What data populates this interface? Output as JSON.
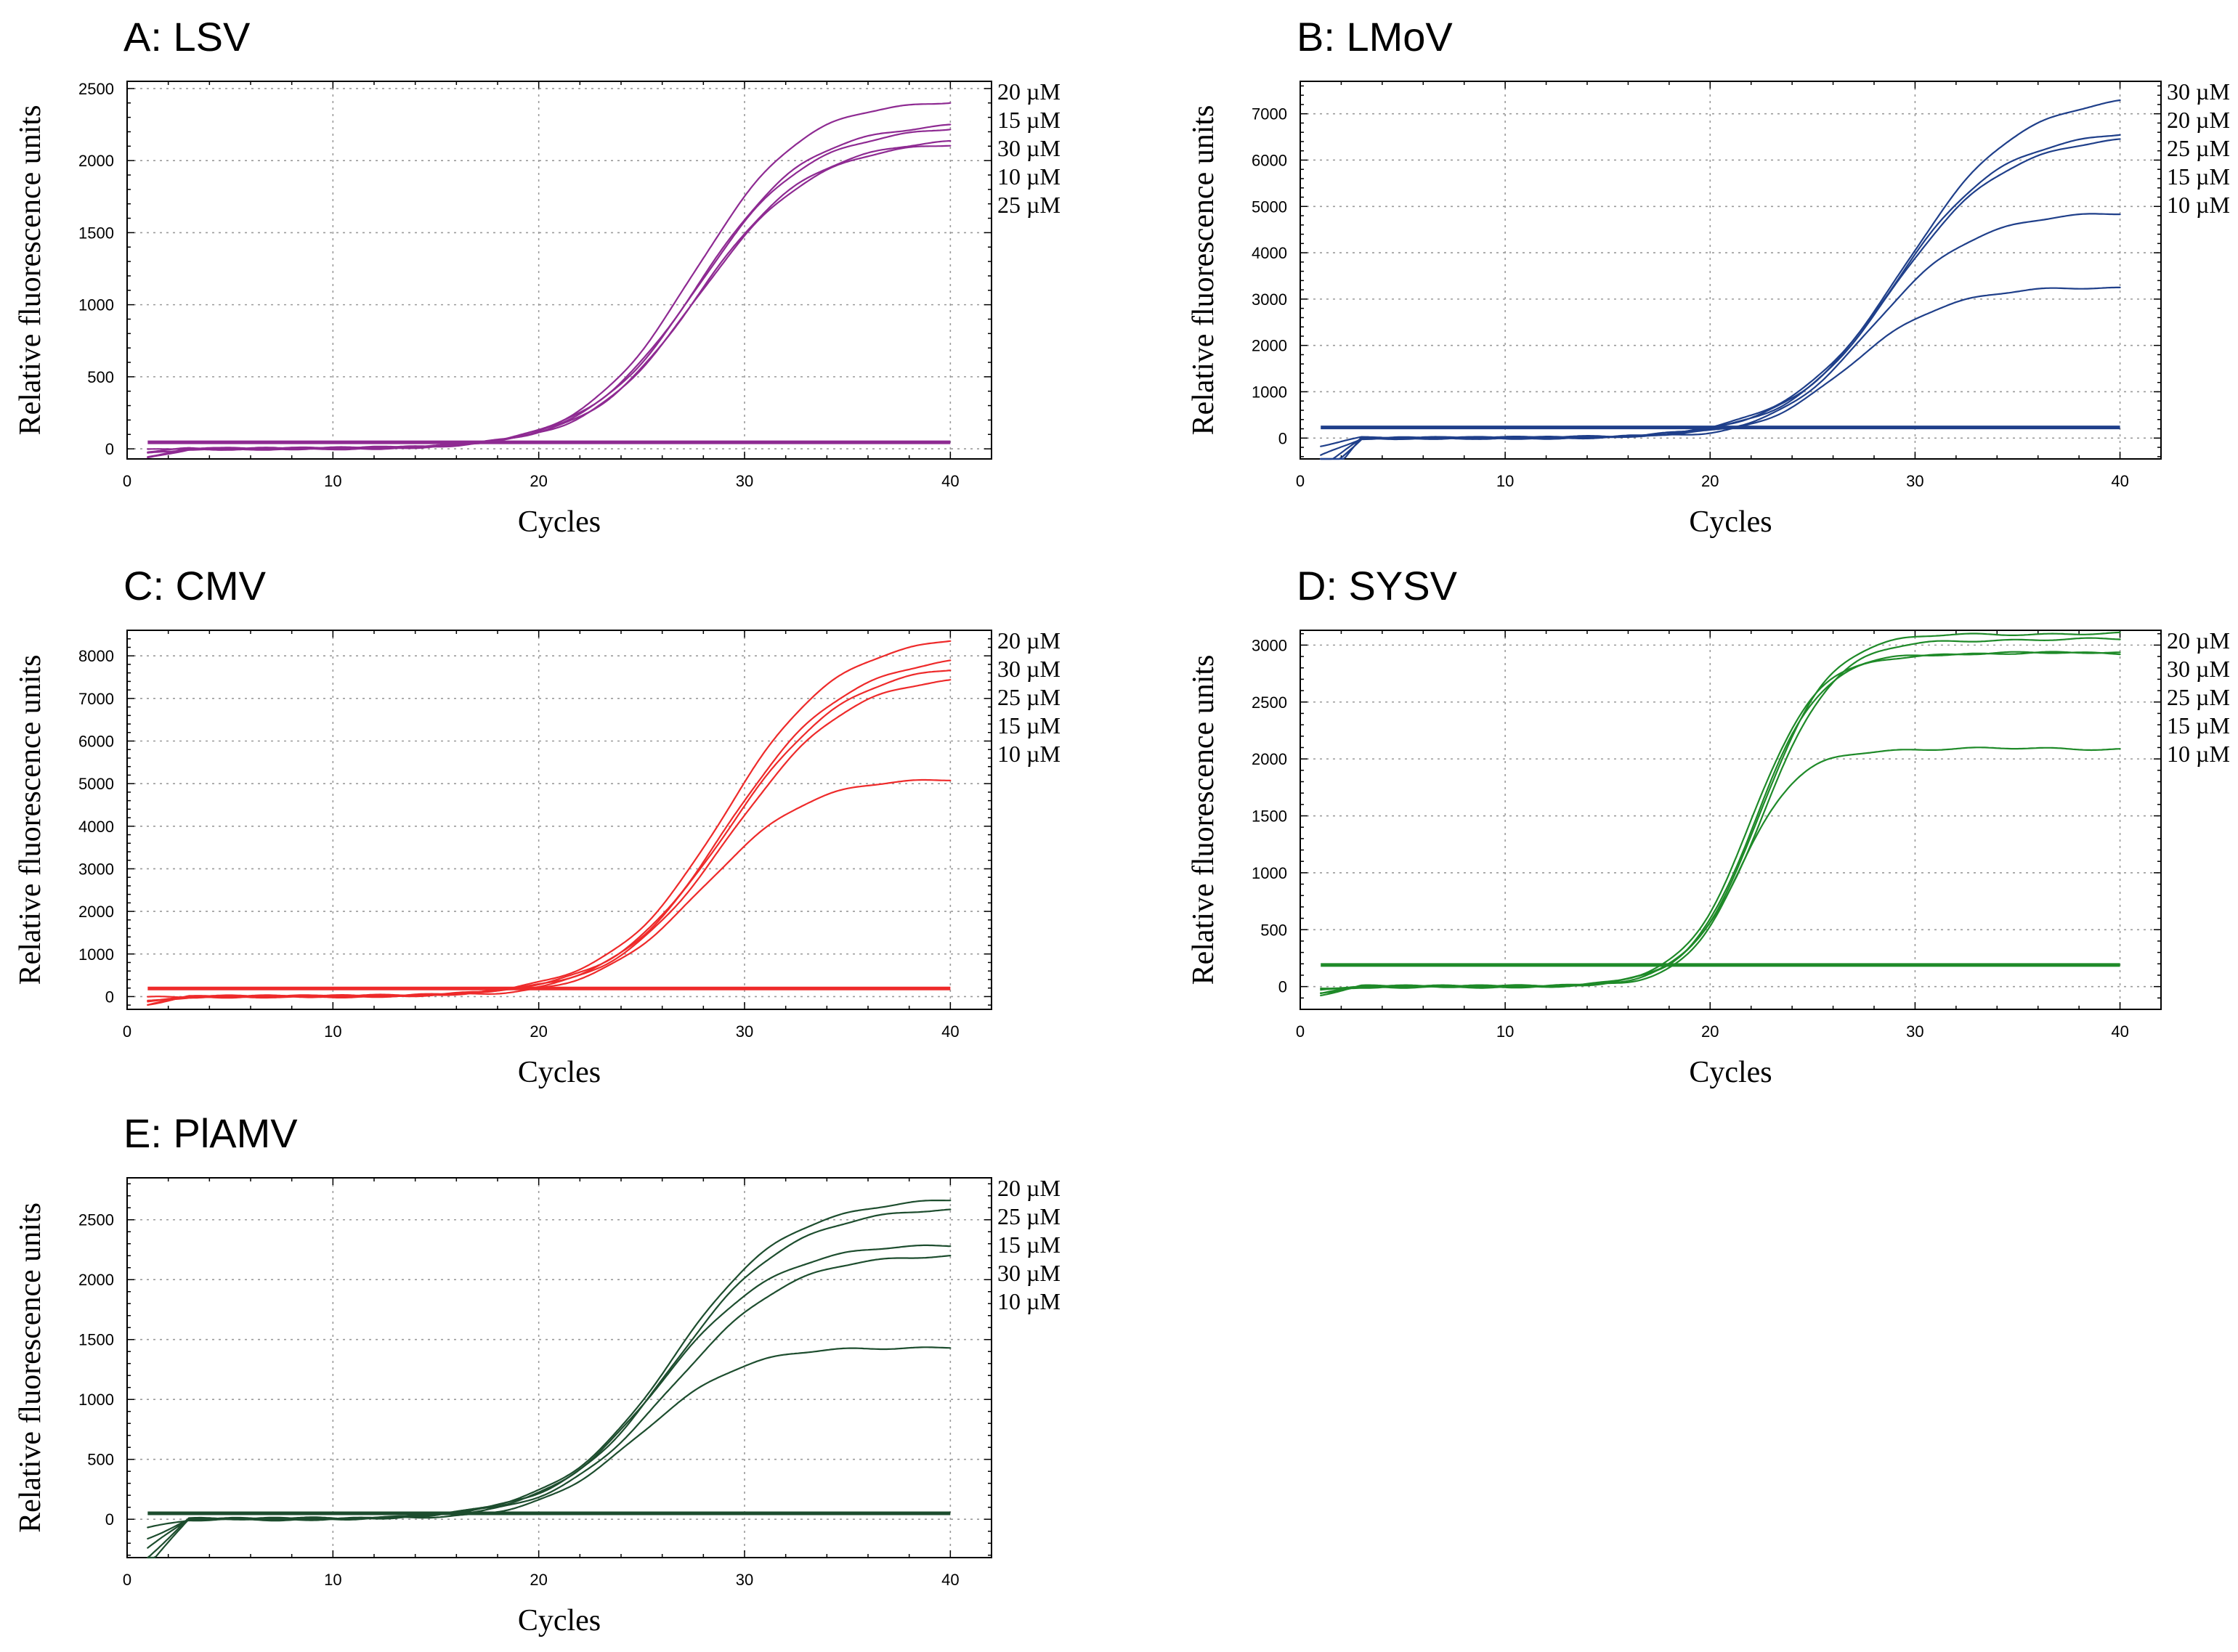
{
  "figure": {
    "panels": [
      "A: LSV",
      "B: LMoV",
      "C: CMV",
      "D: SYSV",
      "E: PlAMV"
    ]
  },
  "chart_data": [
    {
      "panel": "A",
      "type": "line",
      "title": "A: LSV",
      "xlabel": "Cycles",
      "ylabel": "Relative fluorescence units",
      "xlim": [
        0,
        42
      ],
      "ylim": [
        -70,
        2550
      ],
      "xticks": [
        0,
        10,
        20,
        30,
        40
      ],
      "yticks": [
        0,
        500,
        1000,
        1500,
        2000,
        2500
      ],
      "color": "#8e2a92",
      "threshold": 45,
      "grid": true,
      "legend_position": "right",
      "legend": [
        "20 µM",
        "15 µM",
        "30 µM",
        "10 µM",
        "25 µM"
      ],
      "series": [
        {
          "name": "20 µM",
          "plateau": 2430,
          "midpoint": 27.5,
          "slope": 0.38,
          "end_value": 2430
        },
        {
          "name": "15 µM",
          "plateau": 2270,
          "midpoint": 27.7,
          "slope": 0.37,
          "end_value": 2270
        },
        {
          "name": "30 µM",
          "plateau": 2240,
          "midpoint": 27.7,
          "slope": 0.37,
          "end_value": 2240
        },
        {
          "name": "10 µM",
          "plateau": 2150,
          "midpoint": 27.8,
          "slope": 0.37,
          "end_value": 2150
        },
        {
          "name": "25 µM",
          "plateau": 2130,
          "midpoint": 27.8,
          "slope": 0.37,
          "end_value": 2130
        }
      ]
    },
    {
      "panel": "B",
      "type": "line",
      "title": "B: LMoV",
      "xlabel": "Cycles",
      "ylabel": "Relative fluorescence units",
      "xlim": [
        0,
        42
      ],
      "ylim": [
        -450,
        7700
      ],
      "xticks": [
        0,
        10,
        20,
        30,
        40
      ],
      "yticks": [
        0,
        1000,
        2000,
        3000,
        4000,
        5000,
        6000,
        7000
      ],
      "color": "#1f3f8a",
      "threshold": 230,
      "grid": true,
      "legend_position": "right",
      "legend": [
        "30 µM",
        "20 µM",
        "25 µM",
        "15 µM",
        "10 µM"
      ],
      "series": [
        {
          "name": "30 µM",
          "plateau": 7450,
          "midpoint": 29.5,
          "slope": 0.36,
          "end_value": 7450
        },
        {
          "name": "20 µM",
          "plateau": 6650,
          "midpoint": 29.0,
          "slope": 0.38,
          "end_value": 6650
        },
        {
          "name": "25 µM",
          "plateau": 6520,
          "midpoint": 29.0,
          "slope": 0.38,
          "end_value": 6520
        },
        {
          "name": "15 µM",
          "plateau": 4870,
          "midpoint": 28.0,
          "slope": 0.42,
          "end_value": 4870
        },
        {
          "name": "10 µM",
          "plateau": 3250,
          "midpoint": 27.0,
          "slope": 0.45,
          "end_value": 3250
        }
      ]
    },
    {
      "panel": "C",
      "type": "line",
      "title": "C: CMV",
      "xlabel": "Cycles",
      "ylabel": "Relative fluorescence units",
      "xlim": [
        0,
        42
      ],
      "ylim": [
        -300,
        8600
      ],
      "xticks": [
        0,
        10,
        20,
        30,
        40
      ],
      "yticks": [
        0,
        1000,
        2000,
        3000,
        4000,
        5000,
        6000,
        7000,
        8000
      ],
      "color": "#ee2a2a",
      "threshold": 190,
      "grid": true,
      "legend_position": "right",
      "legend": [
        "20 µM",
        "30 µM",
        "25 µM",
        "15 µM",
        "10 µM"
      ],
      "series": [
        {
          "name": "20 µM",
          "plateau": 8520,
          "midpoint": 29.0,
          "slope": 0.36,
          "end_value": 8520
        },
        {
          "name": "30 µM",
          "plateau": 8020,
          "midpoint": 29.2,
          "slope": 0.36,
          "end_value": 8020
        },
        {
          "name": "25 µM",
          "plateau": 7820,
          "midpoint": 29.2,
          "slope": 0.36,
          "end_value": 7820
        },
        {
          "name": "15 µM",
          "plateau": 7580,
          "midpoint": 29.3,
          "slope": 0.36,
          "end_value": 7580
        },
        {
          "name": "10 µM",
          "plateau": 5150,
          "midpoint": 28.0,
          "slope": 0.4,
          "end_value": 5150
        }
      ]
    },
    {
      "panel": "D",
      "type": "line",
      "title": "D: SYSV",
      "xlabel": "Cycles",
      "ylabel": "Relative fluorescence units",
      "xlim": [
        0,
        42
      ],
      "ylim": [
        -200,
        3130
      ],
      "xticks": [
        0,
        10,
        20,
        30,
        40
      ],
      "yticks": [
        0,
        500,
        1000,
        1500,
        2000,
        2500,
        3000
      ],
      "color": "#1e8a28",
      "threshold": 190,
      "grid": true,
      "legend_position": "right",
      "legend": [
        "20 µM",
        "30 µM",
        "25 µM",
        "15 µM",
        "10 µM"
      ],
      "series": [
        {
          "name": "20 µM",
          "plateau": 3100,
          "midpoint": 22.5,
          "slope": 0.6,
          "end_value": 3100
        },
        {
          "name": "30 µM",
          "plateau": 3050,
          "midpoint": 22.6,
          "slope": 0.58,
          "end_value": 3050
        },
        {
          "name": "25 µM",
          "plateau": 2930,
          "midpoint": 22.0,
          "slope": 0.62,
          "end_value": 2930
        },
        {
          "name": "15 µM",
          "plateau": 2930,
          "midpoint": 22.2,
          "slope": 0.62,
          "end_value": 2930
        },
        {
          "name": "10 µM",
          "plateau": 2090,
          "midpoint": 21.5,
          "slope": 0.7,
          "end_value": 2090
        }
      ]
    },
    {
      "panel": "E",
      "type": "line",
      "title": "E: PlAMV",
      "xlabel": "Cycles",
      "ylabel": "Relative fluorescence units",
      "xlim": [
        0,
        42
      ],
      "ylim": [
        -320,
        2850
      ],
      "xticks": [
        0,
        10,
        20,
        30,
        40
      ],
      "yticks": [
        0,
        500,
        1000,
        1500,
        2000,
        2500
      ],
      "color": "#1d4d2e",
      "threshold": 50,
      "grid": true,
      "legend_position": "right",
      "legend": [
        "20 µM",
        "25 µM",
        "15 µM",
        "30 µM",
        "10 µM"
      ],
      "series": [
        {
          "name": "20 µM",
          "plateau": 2680,
          "midpoint": 26.5,
          "slope": 0.36,
          "end_value": 2680
        },
        {
          "name": "25 µM",
          "plateau": 2600,
          "midpoint": 26.6,
          "slope": 0.36,
          "end_value": 2600
        },
        {
          "name": "15 µM",
          "plateau": 2300,
          "midpoint": 26.0,
          "slope": 0.37,
          "end_value": 2300
        },
        {
          "name": "30 µM",
          "plateau": 2220,
          "midpoint": 26.5,
          "slope": 0.36,
          "end_value": 2220
        },
        {
          "name": "10 µM",
          "plateau": 1440,
          "midpoint": 25.0,
          "slope": 0.42,
          "end_value": 1440
        }
      ]
    }
  ]
}
